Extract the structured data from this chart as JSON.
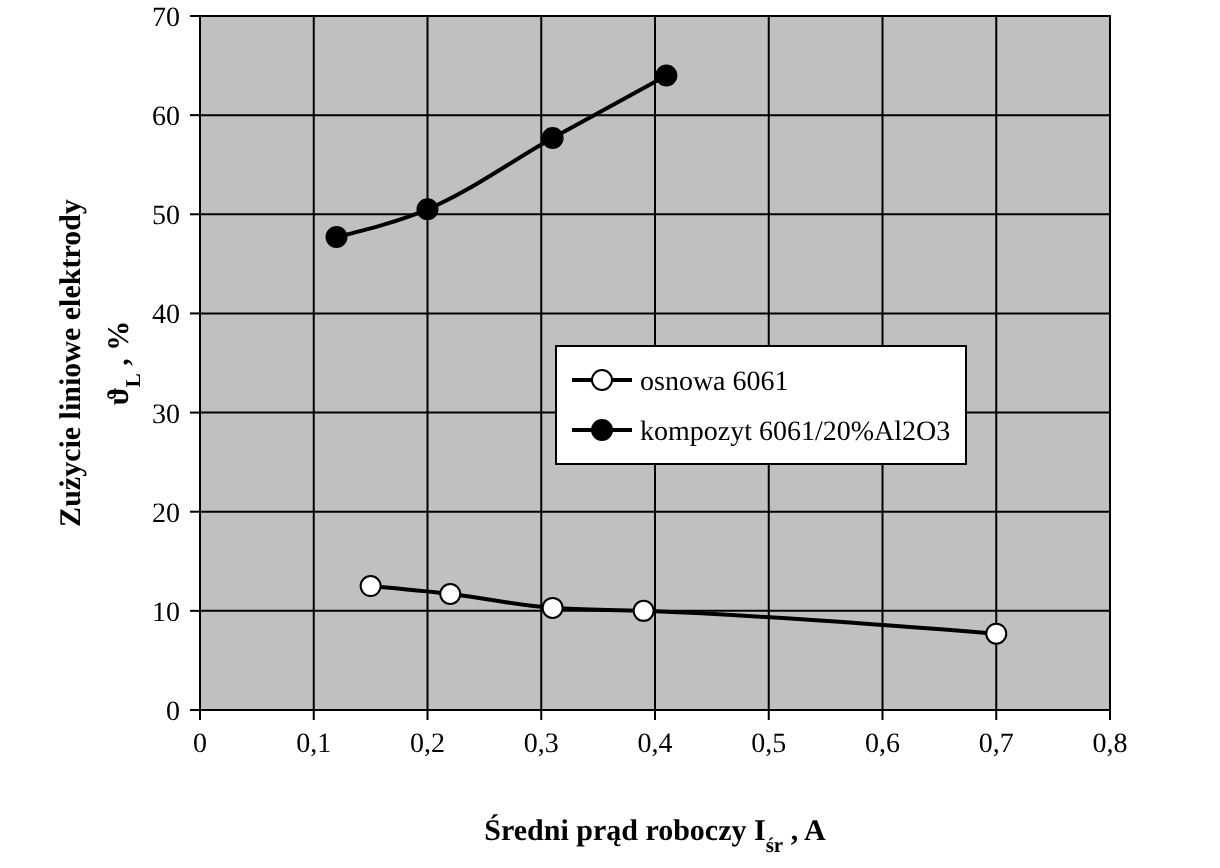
{
  "chart_data": {
    "type": "line",
    "xlabel": "Średni prąd roboczy I$_{śr}$ , A",
    "ylabel": "Zużycie liniowe elektrody\nϑ$_{L}$ , %",
    "xlim": [
      0,
      0.8
    ],
    "xticks": [
      0,
      {
        "value": 0.1,
        "label": "0,1"
      },
      {
        "value": 0.2,
        "label": "0,2"
      },
      {
        "value": 0.3,
        "label": "0,3"
      },
      {
        "value": 0.4,
        "label": "0,4"
      },
      {
        "value": 0.5,
        "label": "0,5"
      },
      {
        "value": 0.6,
        "label": "0,6"
      },
      {
        "value": 0.7,
        "label": "0,7"
      },
      {
        "value": 0.8,
        "label": "0,8"
      }
    ],
    "ylim": [
      0,
      70
    ],
    "yticks": [
      0,
      10,
      20,
      30,
      40,
      50,
      60,
      70
    ],
    "grid": true,
    "legend": "right",
    "marker": "circle",
    "line_style": "solid",
    "series": [
      {
        "name": "osnowa 6061",
        "color": "#ffffff",
        "x": [
          0.15,
          0.22,
          0.31,
          0.39,
          0.7
        ],
        "values": [
          12.5,
          11.7,
          10.3,
          10,
          7.7
        ]
      },
      {
        "name": "kompozyt 6061/20%Al2O3",
        "color": "#000000",
        "x": [
          0.12,
          0.2,
          0.31,
          0.41
        ],
        "values": [
          47.7,
          50.5,
          57.7,
          64
        ]
      }
    ]
  }
}
